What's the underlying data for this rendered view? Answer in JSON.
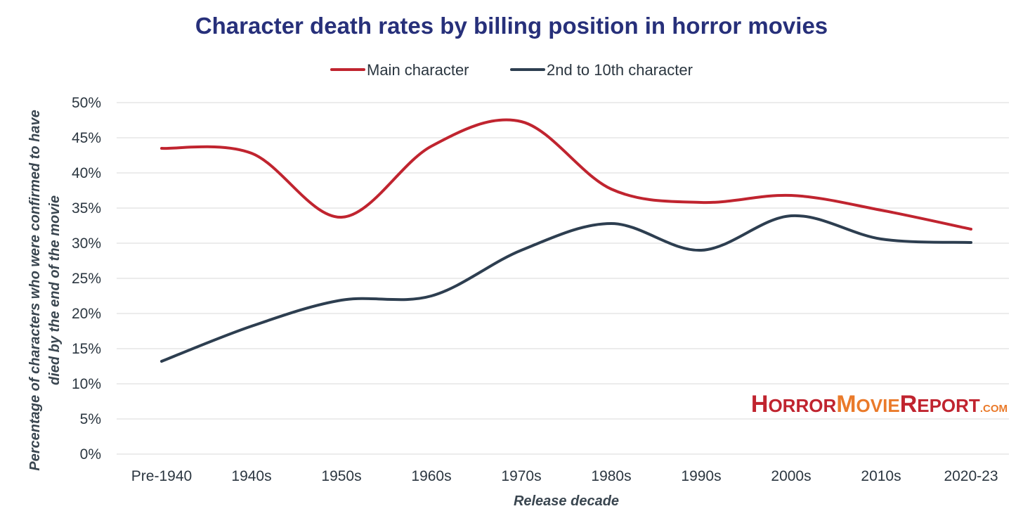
{
  "chart_data": {
    "type": "line",
    "title": "Character death rates by billing position in horror movies",
    "xlabel": "Release decade",
    "ylabel_line1": "Percentage of characters who were confirmed to have",
    "ylabel_line2": "died by the end of the movie",
    "categories": [
      "Pre-1940",
      "1940s",
      "1950s",
      "1960s",
      "1970s",
      "1980s",
      "1990s",
      "2000s",
      "2010s",
      "2020-23"
    ],
    "ylim": [
      0,
      50
    ],
    "ytick_values": [
      0,
      5,
      10,
      15,
      20,
      25,
      30,
      35,
      40,
      45,
      50
    ],
    "ytick_labels": [
      "0%",
      "5%",
      "10%",
      "15%",
      "20%",
      "25%",
      "30%",
      "35%",
      "40%",
      "45%",
      "50%"
    ],
    "grid": true,
    "legend_position": "top-center",
    "series": [
      {
        "name": "Main character",
        "color": "#c0242f",
        "values": [
          43.5,
          42.8,
          33.7,
          43.8,
          47.3,
          37.7,
          35.8,
          36.8,
          34.7,
          32.0
        ]
      },
      {
        "name": "2nd to 10th character",
        "color": "#2d3e50",
        "values": [
          13.2,
          18.2,
          21.9,
          22.5,
          29.0,
          32.8,
          29.0,
          33.9,
          30.6,
          30.1
        ]
      }
    ]
  },
  "logo": {
    "part1_first": "H",
    "part1_rest": "ORROR",
    "part2_first": "M",
    "part2_rest": "OVIE",
    "part3_first": "R",
    "part3_rest": "EPORT",
    "suffix": ".COM",
    "color_primary": "#c0242f",
    "color_secondary": "#ea7a2a"
  }
}
